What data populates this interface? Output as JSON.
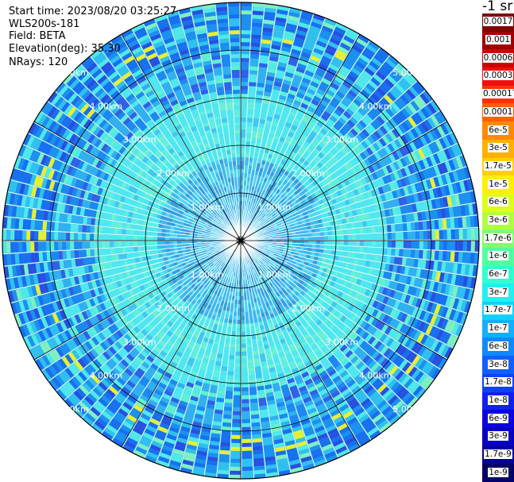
{
  "header": {
    "start_time": "Start time: 2023/08/20 03:25:27",
    "device": "WLS200s-181",
    "field": "Field: BETA",
    "elevation": "Elevation(deg): 35.30",
    "nrays": "NRays: 120"
  },
  "colorbar": {
    "units": "-1 sr",
    "labels": [
      "0.0017",
      "0.001",
      "0.0006",
      "0.0003",
      "0.00017",
      "0.0001",
      "6e-5",
      "3e-5",
      "1.7e-5",
      "1e-5",
      "6e-6",
      "3e-6",
      "1.7e-6",
      "1e-6",
      "6e-7",
      "3e-7",
      "1.7e-7",
      "1e-7",
      "6e-8",
      "3e-8",
      "1.7e-8",
      "1e-8",
      "6e-9",
      "3e-9",
      "1.7e-9",
      "1e-9"
    ],
    "colors": [
      "#800000",
      "#a00000",
      "#cc0000",
      "#ee1010",
      "#ff3000",
      "#ff6000",
      "#ff8a00",
      "#ffb000",
      "#ffd000",
      "#fff000",
      "#e0ff18",
      "#b0ff40",
      "#80ff70",
      "#50ffa0",
      "#30ffd0",
      "#20f0f0",
      "#10d0ff",
      "#10b0ff",
      "#1088ff",
      "#1060ff",
      "#1040ff",
      "#1020f0",
      "#0a00e0",
      "#0800c0",
      "#060098",
      "#04006a"
    ]
  },
  "chart_data": {
    "type": "ppi_polar_scan",
    "nrays": 120,
    "range_km_max": 5.0,
    "range_rings_km": [
      1.0,
      2.0,
      3.0,
      4.0,
      5.0
    ],
    "ring_labels": [
      "1.00km",
      "2.00km",
      "3.00km",
      "4.00km",
      "5.00km"
    ],
    "field": "BETA",
    "color_scale": "log",
    "value_range": [
      1e-09,
      0.0017
    ]
  }
}
